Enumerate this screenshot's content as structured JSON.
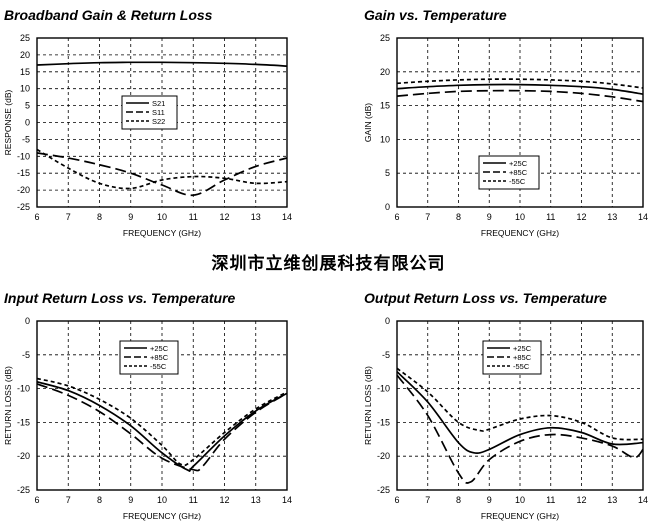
{
  "watermark": "深圳市立维创展科技有限公司",
  "chart_data": [
    {
      "type": "line",
      "title": "Broadband Gain & Return Loss",
      "xlabel": "FREQUENCY (GHz)",
      "ylabel": "RESPONSE (dB)",
      "xlim": [
        6,
        14
      ],
      "ylim": [
        -25,
        25
      ],
      "xticks": [
        6,
        7,
        8,
        9,
        10,
        11,
        12,
        13,
        14
      ],
      "yticks": [
        25,
        20,
        15,
        10,
        5,
        0,
        -5,
        -10,
        -15,
        -20,
        -25
      ],
      "grid": true,
      "legend_position": "center",
      "series": [
        {
          "name": "S21",
          "style": "solid",
          "x": [
            6,
            7,
            8,
            9,
            10,
            11,
            12,
            13,
            14
          ],
          "y": [
            17,
            17.4,
            17.7,
            17.8,
            17.8,
            17.7,
            17.5,
            17.2,
            16.7
          ]
        },
        {
          "name": "S11",
          "style": "dash",
          "x": [
            6,
            7,
            8,
            9,
            10,
            11,
            12,
            13,
            14
          ],
          "y": [
            -9,
            -10.5,
            -12.5,
            -15,
            -18.5,
            -21.5,
            -17,
            -13,
            -10.5
          ]
        },
        {
          "name": "S22",
          "style": "shortdash",
          "x": [
            6,
            7,
            8,
            9,
            10,
            11,
            12,
            13,
            14
          ],
          "y": [
            -8,
            -13.5,
            -18,
            -19.5,
            -17,
            -16,
            -16.5,
            -18,
            -17.5
          ]
        }
      ]
    },
    {
      "type": "line",
      "title": "Gain vs. Temperature",
      "xlabel": "FREQUENCY (GHz)",
      "ylabel": "GAIN (dB)",
      "xlim": [
        6,
        14
      ],
      "ylim": [
        0,
        25
      ],
      "xticks": [
        6,
        7,
        8,
        9,
        10,
        11,
        12,
        13,
        14
      ],
      "yticks": [
        25,
        20,
        15,
        10,
        5,
        0
      ],
      "grid": true,
      "legend_position": "lower-center",
      "series": [
        {
          "name": "+25C",
          "style": "solid",
          "x": [
            6,
            7,
            8,
            9,
            10,
            11,
            12,
            13,
            14
          ],
          "y": [
            17.5,
            17.8,
            18,
            18.1,
            18.1,
            18,
            17.8,
            17.4,
            16.7
          ]
        },
        {
          "name": "+85C",
          "style": "dash",
          "x": [
            6,
            7,
            8,
            9,
            10,
            11,
            12,
            13,
            14
          ],
          "y": [
            16.4,
            16.8,
            17.1,
            17.2,
            17.2,
            17.1,
            16.8,
            16.3,
            15.6
          ]
        },
        {
          "name": "-55C",
          "style": "shortdash",
          "x": [
            6,
            7,
            8,
            9,
            10,
            11,
            12,
            13,
            14
          ],
          "y": [
            18.3,
            18.6,
            18.8,
            18.9,
            18.9,
            18.8,
            18.6,
            18.2,
            17.6
          ]
        }
      ]
    },
    {
      "type": "line",
      "title": "Input Return Loss vs. Temperature",
      "xlabel": "FREQUENCY (GHz)",
      "ylabel": "RETURN LOSS (dB)",
      "xlim": [
        6,
        14
      ],
      "ylim": [
        -25,
        0
      ],
      "xticks": [
        6,
        7,
        8,
        9,
        10,
        11,
        12,
        13,
        14
      ],
      "yticks": [
        0,
        -5,
        -10,
        -15,
        -20,
        -25
      ],
      "grid": true,
      "legend_position": "top-right",
      "series": [
        {
          "name": "+25C",
          "style": "solid",
          "x": [
            6,
            7,
            8,
            9,
            10,
            10.8,
            11,
            12,
            13,
            14
          ],
          "y": [
            -9,
            -10.3,
            -12.5,
            -15.5,
            -19.5,
            -22,
            -21.5,
            -17,
            -13.3,
            -10.7
          ]
        },
        {
          "name": "+85C",
          "style": "dash",
          "x": [
            6,
            7,
            8,
            9,
            10,
            11,
            11.3,
            12,
            13,
            14
          ],
          "y": [
            -9.3,
            -11,
            -13.4,
            -16.7,
            -20.3,
            -22,
            -21.5,
            -17.5,
            -13.5,
            -10.7
          ]
        },
        {
          "name": "-55C",
          "style": "shortdash",
          "x": [
            6,
            7,
            8,
            9,
            10,
            10.6,
            11,
            12,
            13,
            14
          ],
          "y": [
            -8.5,
            -9.6,
            -11.6,
            -14.4,
            -18.4,
            -21.2,
            -20.5,
            -16.5,
            -13,
            -10.5
          ]
        }
      ]
    },
    {
      "type": "line",
      "title": "Output Return Loss vs. Temperature",
      "xlabel": "FREQUENCY (GHz)",
      "ylabel": "RETURN LOSS (dB)",
      "xlim": [
        6,
        14
      ],
      "ylim": [
        -25,
        0
      ],
      "xticks": [
        6,
        7,
        8,
        9,
        10,
        11,
        12,
        13,
        14
      ],
      "yticks": [
        0,
        -5,
        -10,
        -15,
        -20,
        -25
      ],
      "grid": true,
      "legend_position": "top-right",
      "series": [
        {
          "name": "+25C",
          "style": "solid",
          "x": [
            6,
            7,
            8,
            8.5,
            9,
            10,
            11,
            12,
            13,
            14
          ],
          "y": [
            -7.5,
            -12,
            -18,
            -19.5,
            -19,
            -16.8,
            -15.8,
            -16.5,
            -18.2,
            -18
          ]
        },
        {
          "name": "+85C",
          "style": "dash",
          "x": [
            6,
            7,
            8,
            8.4,
            9,
            10,
            11,
            12,
            13,
            13.7,
            14
          ],
          "y": [
            -8,
            -14,
            -22.5,
            -23.8,
            -20.5,
            -17.8,
            -16.8,
            -17.3,
            -18.5,
            -20.2,
            -19
          ]
        },
        {
          "name": "-55C",
          "style": "shortdash",
          "x": [
            6,
            7,
            8,
            8.7,
            9,
            10,
            11,
            12,
            13,
            14
          ],
          "y": [
            -7,
            -10.5,
            -15,
            -16.2,
            -16,
            -14.5,
            -14,
            -15,
            -17.3,
            -17.5
          ]
        }
      ]
    }
  ]
}
